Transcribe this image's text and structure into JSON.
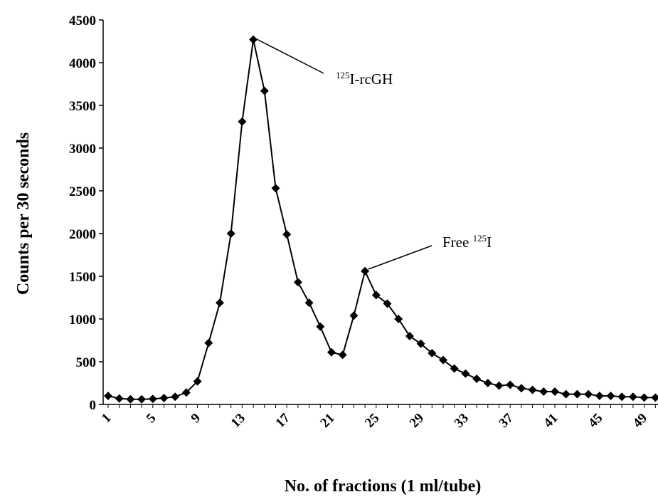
{
  "chart_data": {
    "type": "line",
    "x_label": "No. of fractions (1 ml/tube)",
    "y_label": "Counts per 30 seconds",
    "categories": [
      "1",
      null,
      null,
      null,
      "5",
      null,
      null,
      null,
      "9",
      null,
      null,
      null,
      "13",
      null,
      null,
      null,
      "17",
      null,
      null,
      null,
      "21",
      null,
      null,
      null,
      "25",
      null,
      null,
      null,
      "29",
      null,
      null,
      null,
      "33",
      null,
      null,
      null,
      "37",
      null,
      null,
      null,
      "41",
      null,
      null,
      null,
      "45",
      null,
      null,
      null,
      "49",
      null
    ],
    "series": [
      {
        "color": "#000000",
        "values": [
          100,
          70,
          60,
          60,
          65,
          75,
          90,
          140,
          270,
          720,
          1190,
          2000,
          3310,
          4270,
          3670,
          2530,
          1990,
          1430,
          1190,
          910,
          610,
          580,
          1040,
          1560,
          1280,
          1180,
          1000,
          800,
          710,
          600,
          520,
          420,
          360,
          300,
          250,
          220,
          230,
          190,
          170,
          150,
          150,
          120,
          120,
          120,
          100,
          100,
          90,
          90,
          80,
          80
        ]
      }
    ],
    "ylim": [
      0,
      4500
    ],
    "yticks": [
      0,
      500,
      1000,
      1500,
      2000,
      2500,
      3000,
      3500,
      4000,
      4500
    ],
    "annotations": [
      {
        "superscript": "125",
        "text": "I-rcGH"
      },
      {
        "prefix": "Free ",
        "superscript": "125",
        "text": "I"
      }
    ]
  }
}
